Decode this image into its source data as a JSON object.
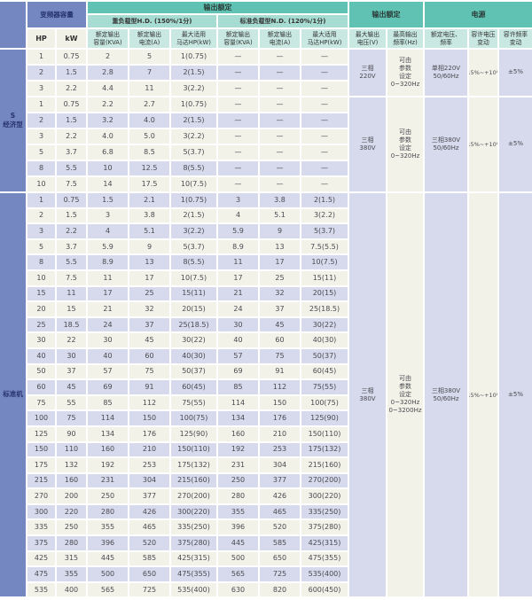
{
  "colors": {
    "sidebar_blue": "#7587c1",
    "header_teal": "#5fc2b2",
    "subheader_teal": "#a7dcd2",
    "column_header_teal": "#c8e8e1",
    "row_cream": "#f2f2e9",
    "row_lavender": "#d7d9ec",
    "navy_text": "#25316e"
  },
  "table": {
    "header": {
      "capacity_label": "变频器容量",
      "output_rating_label": "输出额定",
      "heavy_duty_label": "重负载型H.D. (150%/1分)",
      "normal_duty_label": "标准负载型N.D. (120%/1分)",
      "output_rating2_label": "输出额定",
      "power_label": "电源",
      "col_hp": "HP",
      "col_kw": "kW",
      "col_kva": "额定输出\n容量(KVA)",
      "col_current": "额定输出\n电流(A)",
      "col_motor": "最大适用\n马达HP(kW)",
      "col_max_voltage": "最大输出\n电压(V)",
      "col_max_freq": "最高输出\n频率(Hz)",
      "col_rated_vf": "额定电压、\n频率",
      "col_voltage_tol": "容许电压\n变动",
      "col_freq_tol": "容许频率\n变动"
    },
    "sections": [
      {
        "label": "S\n经济型",
        "rows": [
          [
            "1",
            "0.75",
            "2",
            "5",
            "1(0.75)",
            "—",
            "—",
            "—"
          ],
          [
            "2",
            "1.5",
            "2.8",
            "7",
            "2(1.5)",
            "—",
            "—",
            "—"
          ],
          [
            "3",
            "2.2",
            "4.4",
            "11",
            "3(2.2)",
            "—",
            "—",
            "—"
          ],
          [
            "1",
            "0.75",
            "2.2",
            "2.7",
            "1(0.75)",
            "—",
            "—",
            "—"
          ],
          [
            "2",
            "1.5",
            "3.2",
            "4.0",
            "2(1.5)",
            "—",
            "—",
            "—"
          ],
          [
            "3",
            "2.2",
            "4.0",
            "5.0",
            "3(2.2)",
            "—",
            "—",
            "—"
          ],
          [
            "5",
            "3.7",
            "6.8",
            "8.5",
            "5(3.7)",
            "—",
            "—",
            "—"
          ],
          [
            "8",
            "5.5",
            "10",
            "12.5",
            "8(5.5)",
            "—",
            "—",
            "—"
          ],
          [
            "10",
            "7.5",
            "14",
            "17.5",
            "10(7.5)",
            "—",
            "—",
            "—"
          ]
        ],
        "groups": [
          {
            "span": 3,
            "max_voltage": "三相\n220V",
            "max_freq": "可由\n参数\n设定\n0~320Hz",
            "rated_vf": "单相220V\n50/60Hz",
            "voltage_tol": "-15%~+10%",
            "freq_tol": "±5%"
          },
          {
            "span": 6,
            "max_voltage": "三相\n380V",
            "max_freq": "可由\n参数\n设定\n0~320Hz",
            "rated_vf": "三相380V\n50/60Hz",
            "voltage_tol": "-15%~+10%",
            "freq_tol": "±5%"
          }
        ]
      },
      {
        "label": "标准机",
        "rows": [
          [
            "1",
            "0.75",
            "1.5",
            "2.1",
            "1(0.75)",
            "3",
            "3.8",
            "2(1.5)"
          ],
          [
            "2",
            "1.5",
            "3",
            "3.8",
            "2(1.5)",
            "4",
            "5.1",
            "3(2.2)"
          ],
          [
            "3",
            "2.2",
            "4",
            "5.1",
            "3(2.2)",
            "5.9",
            "9",
            "5(3.7)"
          ],
          [
            "5",
            "3.7",
            "5.9",
            "9",
            "5(3.7)",
            "8.9",
            "13",
            "7.5(5.5)"
          ],
          [
            "8",
            "5.5",
            "8.9",
            "13",
            "8(5.5)",
            "11",
            "17",
            "10(7.5)"
          ],
          [
            "10",
            "7.5",
            "11",
            "17",
            "10(7.5)",
            "17",
            "25",
            "15(11)"
          ],
          [
            "15",
            "11",
            "17",
            "25",
            "15(11)",
            "21",
            "32",
            "20(15)"
          ],
          [
            "20",
            "15",
            "21",
            "32",
            "20(15)",
            "24",
            "37",
            "25(18.5)"
          ],
          [
            "25",
            "18.5",
            "24",
            "37",
            "25(18.5)",
            "30",
            "45",
            "30(22)"
          ],
          [
            "30",
            "22",
            "30",
            "45",
            "30(22)",
            "40",
            "60",
            "40(30)"
          ],
          [
            "40",
            "30",
            "40",
            "60",
            "40(30)",
            "57",
            "75",
            "50(37)"
          ],
          [
            "50",
            "37",
            "57",
            "75",
            "50(37)",
            "69",
            "91",
            "60(45)"
          ],
          [
            "60",
            "45",
            "69",
            "91",
            "60(45)",
            "85",
            "112",
            "75(55)"
          ],
          [
            "75",
            "55",
            "85",
            "112",
            "75(55)",
            "114",
            "150",
            "100(75)"
          ],
          [
            "100",
            "75",
            "114",
            "150",
            "100(75)",
            "134",
            "176",
            "125(90)"
          ],
          [
            "125",
            "90",
            "134",
            "176",
            "125(90)",
            "160",
            "210",
            "150(110)"
          ],
          [
            "150",
            "110",
            "160",
            "210",
            "150(110)",
            "192",
            "253",
            "175(132)"
          ],
          [
            "175",
            "132",
            "192",
            "253",
            "175(132)",
            "231",
            "304",
            "215(160)"
          ],
          [
            "215",
            "160",
            "231",
            "304",
            "215(160)",
            "250",
            "377",
            "270(200)"
          ],
          [
            "270",
            "200",
            "250",
            "377",
            "270(200)",
            "280",
            "426",
            "300(220)"
          ],
          [
            "300",
            "220",
            "280",
            "426",
            "300(220)",
            "355",
            "465",
            "335(250)"
          ],
          [
            "335",
            "250",
            "355",
            "465",
            "335(250)",
            "396",
            "520",
            "375(280)"
          ],
          [
            "375",
            "280",
            "396",
            "520",
            "375(280)",
            "445",
            "585",
            "425(315)"
          ],
          [
            "425",
            "315",
            "445",
            "585",
            "425(315)",
            "500",
            "650",
            "475(355)"
          ],
          [
            "475",
            "355",
            "500",
            "650",
            "475(355)",
            "565",
            "725",
            "535(400)"
          ],
          [
            "535",
            "400",
            "565",
            "725",
            "535(400)",
            "630",
            "820",
            "600(450)"
          ]
        ],
        "groups": [
          {
            "span": 26,
            "max_voltage": "三相\n380V",
            "max_freq": "可由\n参数\n设定\n0~320Hz\n0~3200Hz",
            "rated_vf": "三相380V\n50/60Hz",
            "voltage_tol": "-15%~+10%",
            "freq_tol": "±5%"
          }
        ]
      }
    ]
  }
}
